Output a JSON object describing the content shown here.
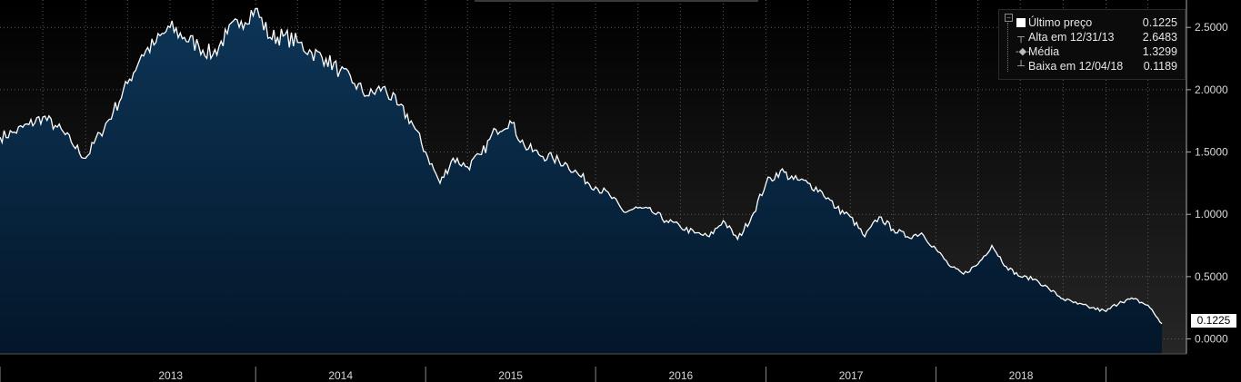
{
  "chart_data": {
    "type": "area",
    "x_ticks": [
      "2013",
      "2014",
      "2015",
      "2016",
      "2017",
      "2018"
    ],
    "y_ticks": [
      "0.0000",
      "0.5000",
      "1.0000",
      "1.5000",
      "2.0000",
      "2.5000"
    ],
    "ylim": [
      -0.12,
      2.72
    ],
    "grid": true,
    "legend_position": "top-right",
    "legend": [
      {
        "label": "Último preço",
        "value": "0.1225"
      },
      {
        "label": "Alta em 12/31/13",
        "value": "2.6483"
      },
      {
        "label": "Média",
        "value": "1.3299"
      },
      {
        "label": "Baixa em 12/04/18",
        "value": "0.1189"
      }
    ],
    "last_value_label": "0.1225",
    "series": [
      {
        "values": [
          {
            "x": "2012-07-01",
            "y": 1.62
          },
          {
            "x": "2012-08-01",
            "y": 1.66
          },
          {
            "x": "2012-09-01",
            "y": 1.72
          },
          {
            "x": "2012-10-01",
            "y": 1.78
          },
          {
            "x": "2012-11-01",
            "y": 1.7
          },
          {
            "x": "2012-12-01",
            "y": 1.58
          },
          {
            "x": "2013-01-01",
            "y": 1.45
          },
          {
            "x": "2013-02-01",
            "y": 1.65
          },
          {
            "x": "2013-03-01",
            "y": 1.82
          },
          {
            "x": "2013-04-01",
            "y": 2.05
          },
          {
            "x": "2013-05-01",
            "y": 2.28
          },
          {
            "x": "2013-06-01",
            "y": 2.38
          },
          {
            "x": "2013-07-01",
            "y": 2.5
          },
          {
            "x": "2013-08-01",
            "y": 2.42
          },
          {
            "x": "2013-09-01",
            "y": 2.35
          },
          {
            "x": "2013-10-01",
            "y": 2.28
          },
          {
            "x": "2013-11-01",
            "y": 2.45
          },
          {
            "x": "2013-12-01",
            "y": 2.55
          },
          {
            "x": "2013-12-31",
            "y": 2.6483
          },
          {
            "x": "2014-02-01",
            "y": 2.42
          },
          {
            "x": "2014-03-01",
            "y": 2.43
          },
          {
            "x": "2014-04-01",
            "y": 2.38
          },
          {
            "x": "2014-05-01",
            "y": 2.3
          },
          {
            "x": "2014-06-01",
            "y": 2.25
          },
          {
            "x": "2014-07-01",
            "y": 2.15
          },
          {
            "x": "2014-08-01",
            "y": 2.05
          },
          {
            "x": "2014-09-01",
            "y": 1.95
          },
          {
            "x": "2014-10-01",
            "y": 2.02
          },
          {
            "x": "2014-11-01",
            "y": 1.88
          },
          {
            "x": "2014-12-01",
            "y": 1.75
          },
          {
            "x": "2015-01-01",
            "y": 1.5
          },
          {
            "x": "2015-02-01",
            "y": 1.25
          },
          {
            "x": "2015-03-01",
            "y": 1.45
          },
          {
            "x": "2015-04-01",
            "y": 1.38
          },
          {
            "x": "2015-05-01",
            "y": 1.48
          },
          {
            "x": "2015-06-01",
            "y": 1.68
          },
          {
            "x": "2015-07-01",
            "y": 1.75
          },
          {
            "x": "2015-08-01",
            "y": 1.55
          },
          {
            "x": "2015-09-01",
            "y": 1.48
          },
          {
            "x": "2015-10-01",
            "y": 1.45
          },
          {
            "x": "2015-11-01",
            "y": 1.4
          },
          {
            "x": "2015-12-01",
            "y": 1.3
          },
          {
            "x": "2016-01-01",
            "y": 1.22
          },
          {
            "x": "2016-02-01",
            "y": 1.15
          },
          {
            "x": "2016-03-01",
            "y": 1.02
          },
          {
            "x": "2016-04-01",
            "y": 1.05
          },
          {
            "x": "2016-05-01",
            "y": 1.02
          },
          {
            "x": "2016-06-01",
            "y": 0.95
          },
          {
            "x": "2016-07-01",
            "y": 0.9
          },
          {
            "x": "2016-08-01",
            "y": 0.85
          },
          {
            "x": "2016-09-01",
            "y": 0.82
          },
          {
            "x": "2016-10-01",
            "y": 0.95
          },
          {
            "x": "2016-11-01",
            "y": 0.8
          },
          {
            "x": "2016-12-01",
            "y": 0.98
          },
          {
            "x": "2017-01-01",
            "y": 1.25
          },
          {
            "x": "2017-02-01",
            "y": 1.35
          },
          {
            "x": "2017-03-01",
            "y": 1.28
          },
          {
            "x": "2017-04-01",
            "y": 1.25
          },
          {
            "x": "2017-05-01",
            "y": 1.18
          },
          {
            "x": "2017-06-01",
            "y": 1.05
          },
          {
            "x": "2017-07-01",
            "y": 0.98
          },
          {
            "x": "2017-08-01",
            "y": 0.82
          },
          {
            "x": "2017-09-01",
            "y": 0.98
          },
          {
            "x": "2017-10-01",
            "y": 0.88
          },
          {
            "x": "2017-11-01",
            "y": 0.82
          },
          {
            "x": "2017-12-01",
            "y": 0.85
          },
          {
            "x": "2018-01-01",
            "y": 0.72
          },
          {
            "x": "2018-02-01",
            "y": 0.58
          },
          {
            "x": "2018-03-01",
            "y": 0.52
          },
          {
            "x": "2018-04-01",
            "y": 0.6
          },
          {
            "x": "2018-05-01",
            "y": 0.75
          },
          {
            "x": "2018-06-01",
            "y": 0.58
          },
          {
            "x": "2018-07-01",
            "y": 0.5
          },
          {
            "x": "2018-08-01",
            "y": 0.48
          },
          {
            "x": "2018-09-01",
            "y": 0.4
          },
          {
            "x": "2018-10-01",
            "y": 0.32
          },
          {
            "x": "2018-11-01",
            "y": 0.28
          },
          {
            "x": "2018-12-01",
            "y": 0.25
          },
          {
            "x": "2019-01-01",
            "y": 0.22
          },
          {
            "x": "2019-02-01",
            "y": 0.3
          },
          {
            "x": "2019-03-01",
            "y": 0.32
          },
          {
            "x": "2019-04-01",
            "y": 0.27
          },
          {
            "x": "2019-05-01",
            "y": 0.1225
          }
        ]
      }
    ]
  },
  "colors": {
    "background": "#000000",
    "area_fill_top": "#0d3557",
    "area_fill_bottom": "#041a2e",
    "line": "#ffffff",
    "grid": "#666666",
    "text": "#d9d9d9"
  }
}
